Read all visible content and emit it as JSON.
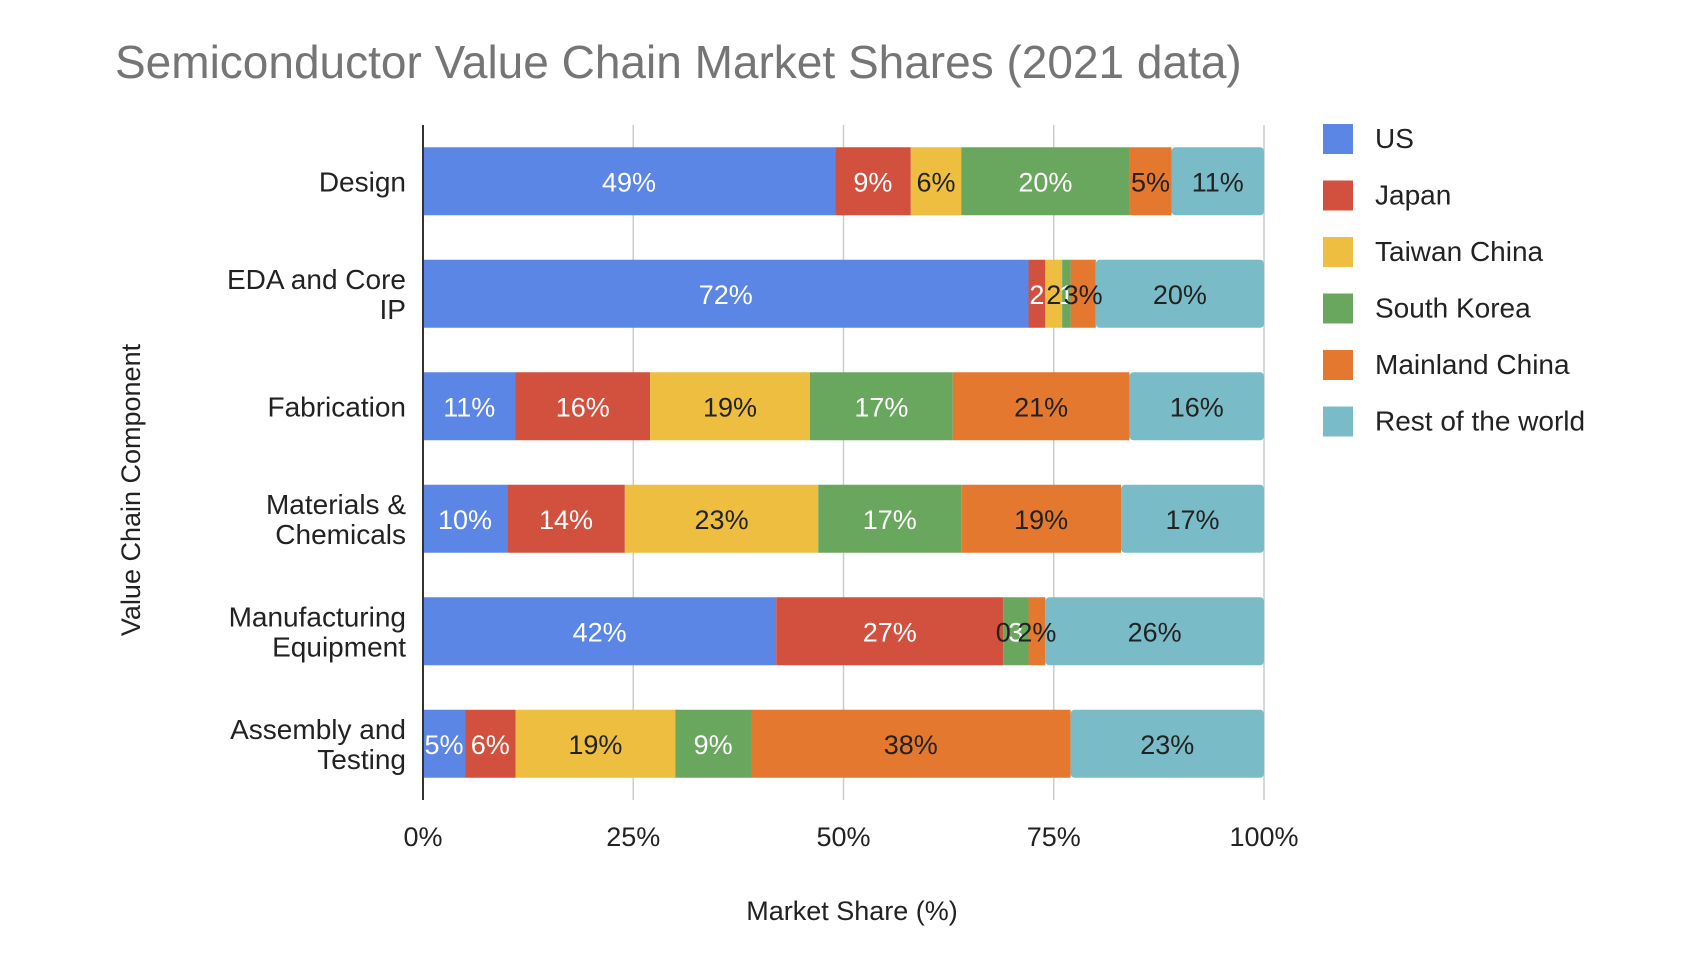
{
  "chart_data": {
    "type": "bar",
    "orientation": "horizontal",
    "stacked": "percent",
    "title": "Semiconductor Value Chain Market Shares (2021 data)",
    "xlabel": "Market Share (%)",
    "ylabel": "Value Chain Component",
    "xlim": [
      0,
      100
    ],
    "x_ticks": [
      "0%",
      "25%",
      "50%",
      "75%",
      "100%"
    ],
    "grid": true,
    "legend_position": "right",
    "categories": [
      [
        "Design"
      ],
      [
        "EDA and Core",
        "IP"
      ],
      [
        "Fabrication"
      ],
      [
        "Materials &",
        "Chemicals"
      ],
      [
        "Manufacturing",
        "Equipment"
      ],
      [
        "Assembly and",
        "Testing"
      ]
    ],
    "series": [
      {
        "name": "US",
        "color": "#5b86e5",
        "label_color": "#ffffff",
        "values": [
          49,
          72,
          11,
          10,
          42,
          5
        ]
      },
      {
        "name": "Japan",
        "color": "#d1513e",
        "label_color": "#ffffff",
        "values": [
          9,
          2,
          16,
          14,
          27,
          6
        ]
      },
      {
        "name": "Taiwan China",
        "color": "#edbe3f",
        "label_color": "#222222",
        "values": [
          6,
          2,
          19,
          23,
          0,
          19
        ]
      },
      {
        "name": "South Korea",
        "color": "#6aa75e",
        "label_color": "#ffffff",
        "values": [
          20,
          1,
          17,
          17,
          3,
          9
        ]
      },
      {
        "name": "Mainland China",
        "color": "#e5782f",
        "label_color": "#222222",
        "values": [
          5,
          3,
          21,
          19,
          2,
          38
        ]
      },
      {
        "name": "Rest of the world",
        "color": "#79bcc7",
        "label_color": "#222222",
        "values": [
          11,
          20,
          16,
          17,
          26,
          23
        ]
      }
    ],
    "data_labels": [
      [
        "49%",
        "9%",
        "6%",
        "20%",
        "5%",
        "11%"
      ],
      [
        "72%",
        "2",
        "2",
        "1",
        "3%",
        "20%"
      ],
      [
        "11%",
        "16%",
        "19%",
        "17%",
        "21%",
        "16%"
      ],
      [
        "10%",
        "14%",
        "23%",
        "17%",
        "19%",
        "17%"
      ],
      [
        "42%",
        "27%",
        "0",
        "3",
        "2%",
        "26%"
      ],
      [
        "5%",
        "6%",
        "19%",
        "9%",
        "38%",
        "23%"
      ]
    ]
  }
}
